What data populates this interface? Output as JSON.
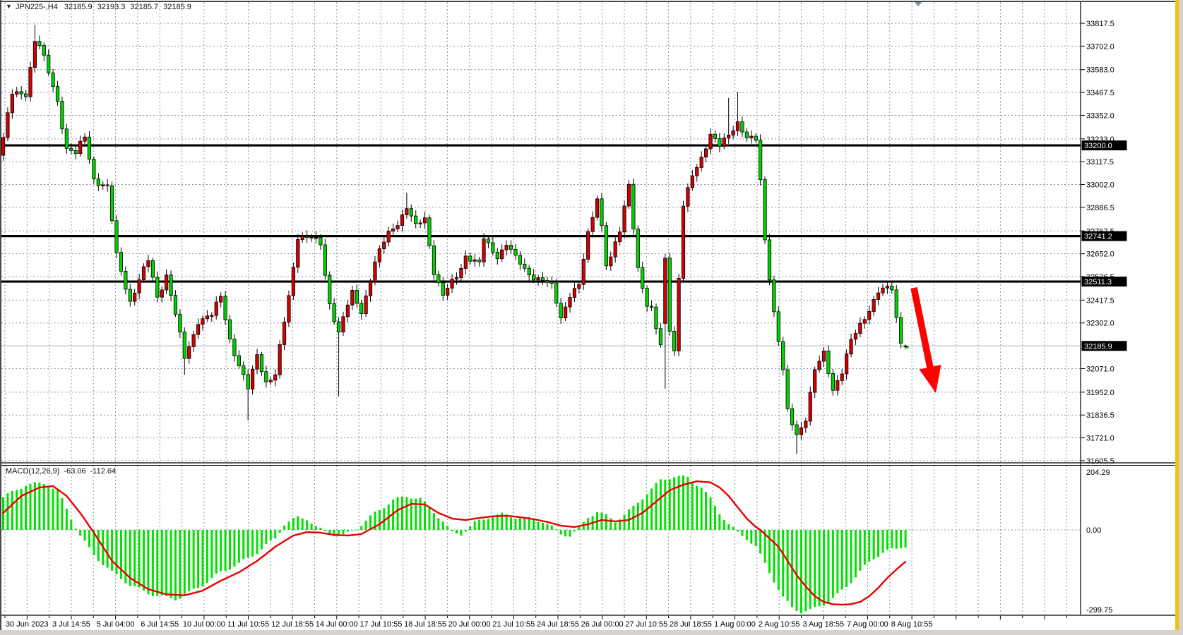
{
  "header": {
    "symbol_period": "JPN225-,H4",
    "open": "32185.9",
    "high": "32193.3",
    "low": "32185.7",
    "close": "32185.9",
    "dropdown_icon": "symbol-dropdown"
  },
  "macd_panel": {
    "label": "MACD(12,26,9)",
    "macd_value": "-63.06",
    "signal_value": "-112.64",
    "axis_labels": [
      "204.29",
      "0.00",
      "-299.75"
    ],
    "axis_values": [
      204.29,
      0.0,
      -299.75
    ]
  },
  "chart_data": {
    "type": "candlestick",
    "title": "JPN225-,H4",
    "legend_position": "top-left",
    "grid": true,
    "price_axis_labels": [
      "33817.5",
      "33702.0",
      "33583.0",
      "33467.5",
      "33352.0",
      "33233.0",
      "33117.5",
      "33002.0",
      "32886.5",
      "32767.5",
      "32652.0",
      "32536.5",
      "32417.5",
      "32302.0",
      "32071.0",
      "31952.0",
      "31836.5",
      "31721.0",
      "31605.5"
    ],
    "price_range_top": 33930.0,
    "price_range_bottom": 31598.0,
    "highlight_price_labels": [
      {
        "text": "33200.0",
        "price": 33200.0,
        "kind": "hline"
      },
      {
        "text": "32741.2",
        "price": 32741.2,
        "kind": "hline"
      },
      {
        "text": "32511.3",
        "price": 32511.3,
        "kind": "hline"
      },
      {
        "text": "32185.9",
        "price": 32185.9,
        "kind": "current-price"
      }
    ],
    "horizontal_lines": [
      33200.0,
      32741.2,
      32511.3
    ],
    "current_price": 32185.9,
    "time_axis_labels": [
      "30 Jun 2023",
      "3 Jul 14:55",
      "5 Jul 04:00",
      "6 Jul 14:55",
      "10 Jul 00:00",
      "11 Jul 10:55",
      "12 Jul 18:55",
      "14 Jul 00:00",
      "17 Jul 10:55",
      "18 Jul 18:55",
      "20 Jul 00:00",
      "21 Jul 10:55",
      "24 Jul 18:55",
      "26 Jul 00:00",
      "27 Jul 10:55",
      "28 Jul 18:55",
      "1 Aug 00:00",
      "2 Aug 10:55",
      "3 Aug 18:55",
      "7 Aug 00:00",
      "8 Aug 10:55"
    ],
    "candles": {
      "count": 200,
      "first_open": 33150,
      "close_anchors": [
        [
          0,
          33240
        ],
        [
          2,
          33450
        ],
        [
          5,
          33470
        ],
        [
          7,
          33735
        ],
        [
          8,
          33700
        ],
        [
          10,
          33560
        ],
        [
          12,
          33430
        ],
        [
          14,
          33190
        ],
        [
          16,
          33150
        ],
        [
          18,
          33240
        ],
        [
          20,
          33040
        ],
        [
          23,
          32980
        ],
        [
          25,
          32640
        ],
        [
          28,
          32420
        ],
        [
          32,
          32610
        ],
        [
          34,
          32440
        ],
        [
          36,
          32550
        ],
        [
          39,
          32230
        ],
        [
          40,
          32120
        ],
        [
          43,
          32320
        ],
        [
          46,
          32330
        ],
        [
          48,
          32440
        ],
        [
          50,
          32230
        ],
        [
          52,
          32080
        ],
        [
          54,
          31960
        ],
        [
          56,
          32150
        ],
        [
          58,
          32010
        ],
        [
          60,
          32030
        ],
        [
          63,
          32440
        ],
        [
          65,
          32750
        ],
        [
          68,
          32720
        ],
        [
          70,
          32700
        ],
        [
          72,
          32410
        ],
        [
          74,
          32250
        ],
        [
          77,
          32450
        ],
        [
          79,
          32370
        ],
        [
          82,
          32600
        ],
        [
          85,
          32760
        ],
        [
          87,
          32820
        ],
        [
          89,
          32880
        ],
        [
          91,
          32780
        ],
        [
          93,
          32840
        ],
        [
          95,
          32570
        ],
        [
          97,
          32430
        ],
        [
          100,
          32540
        ],
        [
          102,
          32650
        ],
        [
          105,
          32590
        ],
        [
          106,
          32720
        ],
        [
          109,
          32650
        ],
        [
          111,
          32700
        ],
        [
          113,
          32620
        ],
        [
          116,
          32560
        ],
        [
          119,
          32510
        ],
        [
          121,
          32480
        ],
        [
          123,
          32340
        ],
        [
          125,
          32450
        ],
        [
          127,
          32480
        ],
        [
          129,
          32750
        ],
        [
          131,
          32950
        ],
        [
          132,
          32800
        ],
        [
          133,
          32600
        ],
        [
          134,
          32620
        ],
        [
          136,
          32760
        ],
        [
          138,
          33020
        ],
        [
          140,
          32580
        ],
        [
          142,
          32370
        ],
        [
          143,
          32360
        ],
        [
          145,
          32200
        ],
        [
          146,
          32630
        ],
        [
          147,
          32280
        ],
        [
          148,
          32150
        ],
        [
          150,
          32880
        ],
        [
          152,
          33060
        ],
        [
          154,
          33150
        ],
        [
          156,
          33240
        ],
        [
          158,
          33190
        ],
        [
          160,
          33270
        ],
        [
          162,
          33320
        ],
        [
          164,
          33220
        ],
        [
          166,
          33230
        ],
        [
          167,
          33030
        ],
        [
          168,
          32740
        ],
        [
          169,
          32540
        ],
        [
          170,
          32350
        ],
        [
          171,
          32200
        ],
        [
          172,
          32050
        ],
        [
          173,
          31850
        ],
        [
          175,
          31750
        ],
        [
          177,
          31820
        ],
        [
          179,
          32050
        ],
        [
          181,
          32150
        ],
        [
          183,
          31980
        ],
        [
          185,
          32050
        ],
        [
          187,
          32200
        ],
        [
          189,
          32300
        ],
        [
          191,
          32380
        ],
        [
          193,
          32450
        ],
        [
          195,
          32470
        ],
        [
          196,
          32480
        ],
        [
          197,
          32330
        ],
        [
          198,
          32200
        ],
        [
          199,
          32185.9
        ]
      ],
      "close_overrides": {
        "146": 32630,
        "197": 32330,
        "198": 32200,
        "199": 32185.9
      },
      "open_overrides": {
        "146": 32300,
        "199": 32185.9
      },
      "high_overrides": {
        "7": 33810,
        "89": 32960,
        "160": 33440,
        "162": 33470,
        "199": 32193.3
      },
      "low_overrides": {
        "40": 32040,
        "54": 31810,
        "74": 31930,
        "146": 31970,
        "175": 31640,
        "199": 32185.7
      },
      "noise_amp_slow": 18,
      "noise_amp_fast": 9
    },
    "macd": {
      "hist_anchors": [
        [
          0,
          115
        ],
        [
          5,
          160
        ],
        [
          9,
          165
        ],
        [
          12,
          140
        ],
        [
          15,
          40
        ],
        [
          17,
          -20
        ],
        [
          20,
          -90
        ],
        [
          24,
          -150
        ],
        [
          28,
          -195
        ],
        [
          32,
          -225
        ],
        [
          36,
          -240
        ],
        [
          38,
          -245
        ],
        [
          40,
          -232
        ],
        [
          44,
          -195
        ],
        [
          48,
          -150
        ],
        [
          52,
          -120
        ],
        [
          56,
          -80
        ],
        [
          60,
          -30
        ],
        [
          62,
          20
        ],
        [
          65,
          45
        ],
        [
          67,
          40
        ],
        [
          69,
          10
        ],
        [
          72,
          -15
        ],
        [
          75,
          -20
        ],
        [
          78,
          5
        ],
        [
          82,
          60
        ],
        [
          86,
          105
        ],
        [
          89,
          120
        ],
        [
          92,
          110
        ],
        [
          94,
          80
        ],
        [
          97,
          30
        ],
        [
          99,
          -10
        ],
        [
          101,
          -15
        ],
        [
          104,
          25
        ],
        [
          107,
          45
        ],
        [
          110,
          55
        ],
        [
          113,
          45
        ],
        [
          116,
          40
        ],
        [
          119,
          30
        ],
        [
          121,
          10
        ],
        [
          123,
          -15
        ],
        [
          125,
          -20
        ],
        [
          127,
          5
        ],
        [
          129,
          45
        ],
        [
          131,
          65
        ],
        [
          133,
          50
        ],
        [
          135,
          30
        ],
        [
          137,
          55
        ],
        [
          139,
          80
        ],
        [
          142,
          130
        ],
        [
          145,
          175
        ],
        [
          148,
          190
        ],
        [
          151,
          185
        ],
        [
          154,
          150
        ],
        [
          156,
          110
        ],
        [
          158,
          60
        ],
        [
          160,
          20
        ],
        [
          162,
          -10
        ],
        [
          164,
          -30
        ],
        [
          166,
          -60
        ],
        [
          168,
          -120
        ],
        [
          170,
          -180
        ],
        [
          172,
          -240
        ],
        [
          174,
          -275
        ],
        [
          176,
          -290
        ],
        [
          178,
          -285
        ],
        [
          180,
          -270
        ],
        [
          182,
          -255
        ],
        [
          184,
          -230
        ],
        [
          186,
          -200
        ],
        [
          188,
          -165
        ],
        [
          190,
          -130
        ],
        [
          192,
          -100
        ],
        [
          194,
          -80
        ],
        [
          196,
          -70
        ],
        [
          198,
          -65
        ],
        [
          199,
          -63.06
        ]
      ],
      "signal_anchors": [
        [
          0,
          60
        ],
        [
          4,
          120
        ],
        [
          8,
          150
        ],
        [
          11,
          155
        ],
        [
          14,
          120
        ],
        [
          17,
          60
        ],
        [
          20,
          -10
        ],
        [
          24,
          -110
        ],
        [
          28,
          -170
        ],
        [
          32,
          -210
        ],
        [
          36,
          -228
        ],
        [
          40,
          -232
        ],
        [
          44,
          -215
        ],
        [
          48,
          -180
        ],
        [
          52,
          -150
        ],
        [
          56,
          -110
        ],
        [
          60,
          -60
        ],
        [
          64,
          -20
        ],
        [
          67,
          -8
        ],
        [
          70,
          -10
        ],
        [
          73,
          -18
        ],
        [
          76,
          -20
        ],
        [
          79,
          -15
        ],
        [
          83,
          20
        ],
        [
          87,
          70
        ],
        [
          90,
          92
        ],
        [
          93,
          90
        ],
        [
          96,
          60
        ],
        [
          99,
          40
        ],
        [
          102,
          35
        ],
        [
          105,
          42
        ],
        [
          108,
          48
        ],
        [
          111,
          50
        ],
        [
          114,
          45
        ],
        [
          117,
          38
        ],
        [
          120,
          28
        ],
        [
          123,
          15
        ],
        [
          126,
          10
        ],
        [
          129,
          20
        ],
        [
          132,
          35
        ],
        [
          135,
          30
        ],
        [
          138,
          35
        ],
        [
          141,
          60
        ],
        [
          144,
          100
        ],
        [
          147,
          140
        ],
        [
          150,
          160
        ],
        [
          153,
          172
        ],
        [
          156,
          168
        ],
        [
          158,
          150
        ],
        [
          160,
          120
        ],
        [
          162,
          80
        ],
        [
          164,
          40
        ],
        [
          166,
          10
        ],
        [
          167,
          0
        ],
        [
          169,
          -30
        ],
        [
          171,
          -60
        ],
        [
          173,
          -110
        ],
        [
          175,
          -160
        ],
        [
          177,
          -200
        ],
        [
          179,
          -235
        ],
        [
          181,
          -255
        ],
        [
          183,
          -263
        ],
        [
          185,
          -265
        ],
        [
          187,
          -263
        ],
        [
          189,
          -255
        ],
        [
          191,
          -235
        ],
        [
          193,
          -205
        ],
        [
          195,
          -170
        ],
        [
          197,
          -140
        ],
        [
          199,
          -112.64
        ]
      ]
    },
    "objects": [
      {
        "type": "trend-arrow",
        "direction": "down-right",
        "color": "#ff0000"
      }
    ],
    "colors": {
      "background": "#ffffff",
      "grid": "#8794a6",
      "bull_candle": "#d40000",
      "bear_candle": "#00d300",
      "candle_outline": "#000000",
      "hline": "#000000",
      "current_price_line": "#a8b2c2",
      "price_marker": "#00c000",
      "macd_histogram": "#00e100",
      "macd_signal": "#e80000",
      "arrow": "#ff0000",
      "label_box_bg": "#000000",
      "label_box_text": "#ffffff",
      "axis_text": "#000000",
      "edge_strip": "#f2c11c",
      "outer_margin": "#d6d3ce",
      "shift_marker": "#7e8ca0"
    }
  }
}
